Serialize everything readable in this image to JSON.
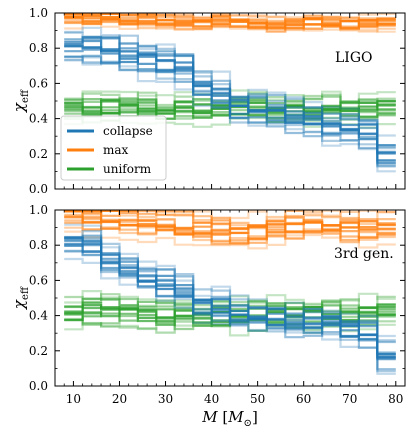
{
  "chart_data": {
    "type": "line",
    "xlabel": "M  [M_⊙]",
    "ylabel": "χ_eff",
    "xticks": [
      10,
      20,
      30,
      40,
      50,
      60,
      70,
      80
    ],
    "yticks": [
      "0.0",
      "0.2",
      "0.4",
      "0.6",
      "0.8",
      "1.0"
    ],
    "xlim": [
      6,
      82
    ],
    "ylim": [
      0,
      1
    ],
    "bin_edges": [
      8,
      12,
      16,
      20,
      24,
      28,
      32,
      36,
      40,
      44,
      48,
      52,
      56,
      60,
      64,
      68,
      72,
      76,
      80
    ],
    "legend": {
      "placement": "center-left of top panel",
      "entries": [
        {
          "label": "collapse",
          "color": "#1f77b4"
        },
        {
          "label": "max",
          "color": "#ff7f0e"
        },
        {
          "label": "uniform",
          "color": "#2ca02c"
        }
      ]
    },
    "panels": [
      {
        "label": "LIGO",
        "series": [
          {
            "color": "#ff7f0e",
            "center": [
              0.97,
              0.97,
              0.97,
              0.96,
              0.96,
              0.95,
              0.95,
              0.94,
              0.95,
              0.95,
              0.94,
              0.93,
              0.94,
              0.95,
              0.95,
              0.94,
              0.94,
              0.95
            ],
            "spread": 0.04
          },
          {
            "color": "#2ca02c",
            "center": [
              0.46,
              0.46,
              0.46,
              0.47,
              0.46,
              0.44,
              0.46,
              0.45,
              0.45,
              0.46,
              0.47,
              0.45,
              0.45,
              0.45,
              0.46,
              0.45,
              0.45,
              0.47
            ],
            "spread": 0.07
          },
          {
            "color": "#1f77b4",
            "center": [
              0.8,
              0.8,
              0.79,
              0.76,
              0.74,
              0.72,
              0.68,
              0.6,
              0.55,
              0.47,
              0.44,
              0.44,
              0.4,
              0.39,
              0.36,
              0.34,
              0.32,
              0.2
            ],
            "spread": 0.09
          }
        ]
      },
      {
        "label": "3rd gen.",
        "series": [
          {
            "color": "#ff7f0e",
            "center": [
              0.96,
              0.96,
              0.95,
              0.94,
              0.93,
              0.92,
              0.91,
              0.9,
              0.89,
              0.87,
              0.88,
              0.9,
              0.92,
              0.92,
              0.91,
              0.9,
              0.89,
              0.9
            ],
            "spread": 0.08
          },
          {
            "color": "#2ca02c",
            "center": [
              0.42,
              0.43,
              0.43,
              0.42,
              0.41,
              0.4,
              0.4,
              0.39,
              0.4,
              0.4,
              0.41,
              0.42,
              0.41,
              0.41,
              0.41,
              0.41,
              0.41,
              0.42
            ],
            "spread": 0.08
          },
          {
            "color": "#1f77b4",
            "center": [
              0.81,
              0.8,
              0.72,
              0.66,
              0.62,
              0.58,
              0.54,
              0.46,
              0.45,
              0.4,
              0.39,
              0.38,
              0.36,
              0.36,
              0.35,
              0.32,
              0.3,
              0.17
            ],
            "spread": 0.08
          }
        ]
      }
    ]
  }
}
